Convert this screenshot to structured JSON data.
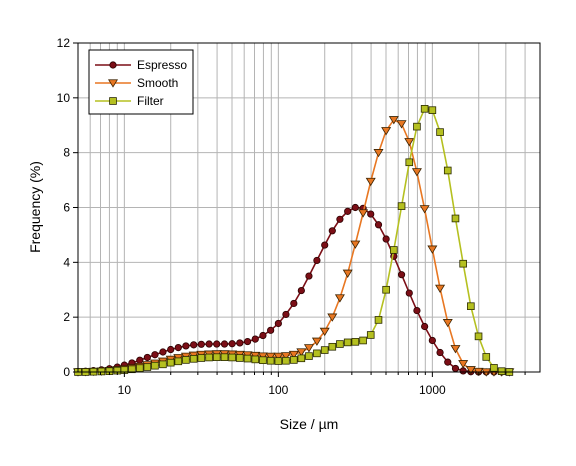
{
  "chart_data": {
    "type": "line",
    "title": "",
    "xlabel": "Size / µm",
    "ylabel": "Frequency (%)",
    "xscale": "log",
    "xlim": [
      5,
      5000
    ],
    "ylim": [
      0,
      12
    ],
    "xticks": [
      10,
      100,
      1000
    ],
    "xtick_labels": [
      "10",
      "100",
      "1000"
    ],
    "yticks": [
      0,
      2,
      4,
      6,
      8,
      10,
      12
    ],
    "ytick_labels": [
      "0",
      "2",
      "4",
      "6",
      "8",
      "10",
      "12"
    ],
    "grid": "on (major and minor)",
    "legend_position": "top-left",
    "series": [
      {
        "name": "Espresso",
        "color": "#7b0e16",
        "marker": "circle",
        "x": [
          5,
          5.6,
          6.3,
          7.1,
          8,
          9,
          10,
          11.2,
          12.6,
          14.1,
          15.8,
          17.8,
          20,
          22.4,
          25.1,
          28.2,
          31.6,
          35.5,
          39.8,
          44.7,
          50.1,
          56.2,
          63.1,
          70.8,
          79.4,
          89.1,
          100,
          112,
          126,
          141,
          158,
          178,
          200,
          224,
          251,
          282,
          316,
          355,
          398,
          447,
          501,
          562,
          631,
          708,
          794,
          891,
          1000,
          1122,
          1259,
          1413,
          1585,
          1778,
          1995,
          2239,
          2512,
          2818,
          3162
        ],
        "y": [
          0.02,
          0.03,
          0.05,
          0.08,
          0.12,
          0.18,
          0.25,
          0.33,
          0.43,
          0.53,
          0.63,
          0.73,
          0.82,
          0.89,
          0.95,
          0.99,
          1.01,
          1.02,
          1.02,
          1.02,
          1.03,
          1.06,
          1.11,
          1.2,
          1.33,
          1.52,
          1.77,
          2.1,
          2.5,
          2.97,
          3.5,
          4.07,
          4.63,
          5.15,
          5.57,
          5.86,
          6.0,
          5.97,
          5.76,
          5.37,
          4.85,
          4.22,
          3.55,
          2.88,
          2.24,
          1.66,
          1.15,
          0.71,
          0.36,
          0.13,
          0.04,
          0.01,
          0.0,
          0.0,
          0.0,
          0.0,
          0.0
        ]
      },
      {
        "name": "Smooth",
        "color": "#e87722",
        "marker": "triangle-down",
        "x": [
          5,
          5.6,
          6.3,
          7.1,
          8,
          9,
          10,
          11.2,
          12.6,
          14.1,
          15.8,
          17.8,
          20,
          22.4,
          25.1,
          28.2,
          31.6,
          35.5,
          39.8,
          44.7,
          50.1,
          56.2,
          63.1,
          70.8,
          79.4,
          89.1,
          100,
          112,
          126,
          141,
          158,
          178,
          200,
          224,
          251,
          282,
          316,
          355,
          398,
          447,
          501,
          562,
          631,
          708,
          794,
          891,
          1000,
          1122,
          1259,
          1413,
          1585,
          1778,
          1995,
          2239,
          2512,
          2818,
          3162
        ],
        "y": [
          0.0,
          0.01,
          0.02,
          0.03,
          0.05,
          0.08,
          0.11,
          0.15,
          0.2,
          0.26,
          0.32,
          0.39,
          0.46,
          0.52,
          0.57,
          0.61,
          0.64,
          0.65,
          0.66,
          0.66,
          0.65,
          0.64,
          0.62,
          0.6,
          0.58,
          0.57,
          0.57,
          0.59,
          0.64,
          0.73,
          0.88,
          1.12,
          1.48,
          2.0,
          2.7,
          3.6,
          4.66,
          5.8,
          6.95,
          8.0,
          8.8,
          9.2,
          9.05,
          8.4,
          7.3,
          5.95,
          4.48,
          3.05,
          1.8,
          0.85,
          0.3,
          0.08,
          0.02,
          0.0,
          0.0,
          0.0,
          0.0
        ]
      },
      {
        "name": "Filter",
        "color": "#b5c020",
        "marker": "square",
        "x": [
          5,
          5.6,
          6.3,
          7.1,
          8,
          9,
          10,
          11.2,
          12.6,
          14.1,
          15.8,
          17.8,
          20,
          22.4,
          25.1,
          28.2,
          31.6,
          35.5,
          39.8,
          44.7,
          50.1,
          56.2,
          63.1,
          70.8,
          79.4,
          89.1,
          100,
          112,
          126,
          141,
          158,
          178,
          200,
          224,
          251,
          282,
          316,
          355,
          398,
          447,
          501,
          562,
          631,
          708,
          794,
          891,
          1000,
          1122,
          1259,
          1413,
          1585,
          1778,
          1995,
          2239,
          2512,
          2818,
          3162
        ],
        "y": [
          0.0,
          0.0,
          0.01,
          0.02,
          0.03,
          0.05,
          0.07,
          0.1,
          0.14,
          0.18,
          0.23,
          0.28,
          0.34,
          0.39,
          0.44,
          0.48,
          0.51,
          0.53,
          0.54,
          0.54,
          0.53,
          0.51,
          0.49,
          0.46,
          0.43,
          0.41,
          0.4,
          0.41,
          0.44,
          0.5,
          0.58,
          0.68,
          0.8,
          0.92,
          1.02,
          1.08,
          1.1,
          1.15,
          1.35,
          1.9,
          3.0,
          4.45,
          6.05,
          7.65,
          8.95,
          9.6,
          9.55,
          8.75,
          7.35,
          5.6,
          3.95,
          2.4,
          1.3,
          0.55,
          0.15,
          0.03,
          0.0
        ]
      }
    ]
  }
}
